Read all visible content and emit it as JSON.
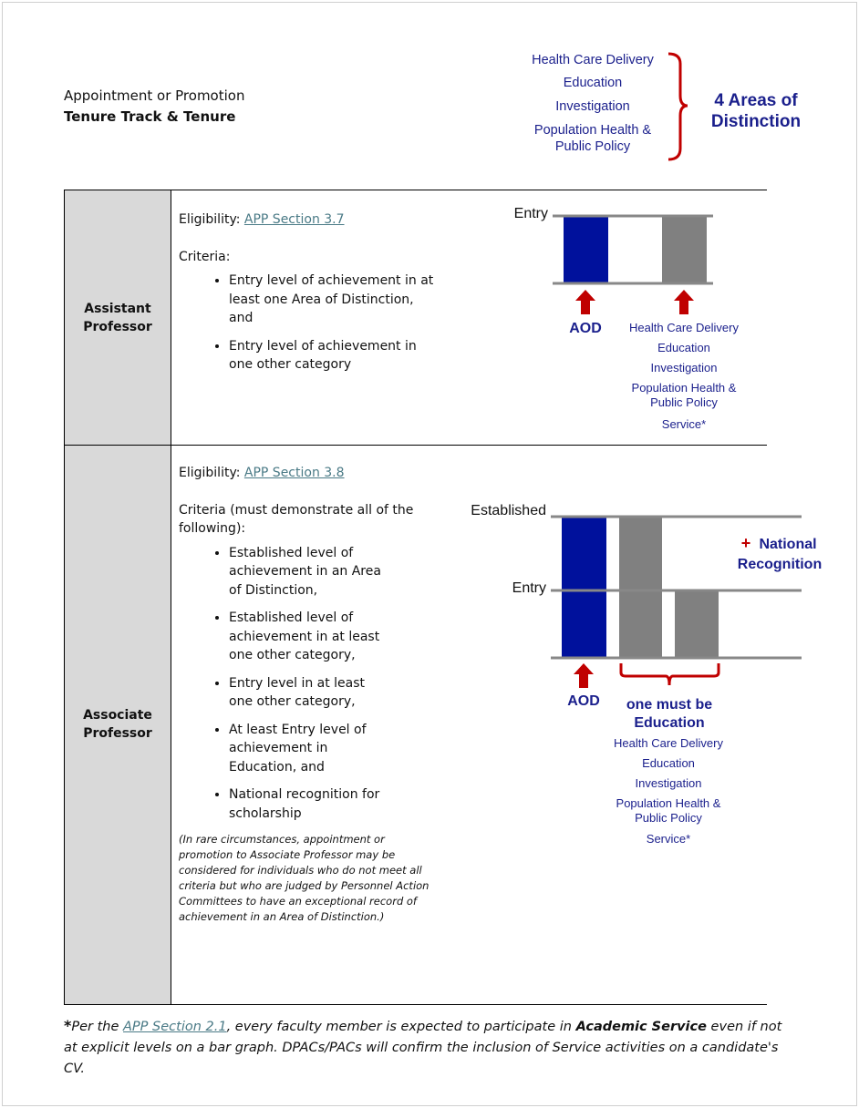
{
  "header": {
    "line1": "Appointment or Promotion",
    "line2": "Tenure Track & Tenure"
  },
  "areas": {
    "items": [
      "Health Care Delivery",
      "Education",
      "Investigation",
      "Population Health &",
      "Public Policy"
    ],
    "label_line1": "4 Areas of",
    "label_line2": "Distinction"
  },
  "colors": {
    "navy": "#1a1f8c",
    "bar_blue": "#00119c",
    "bar_gray": "#808080",
    "red": "#c00000",
    "link": "#4a7a86",
    "label_bg": "#d9d9d9"
  },
  "rows": [
    {
      "label_line1": "Assistant",
      "label_line2": "Professor",
      "eligibility_label": "Eligibility: ",
      "eligibility_link": "APP Section 3.7",
      "criteria_label": "Criteria:",
      "criteria": [
        "Entry level of achievement in at least one Area of Distinction, and",
        "Entry level of achievement in one other category"
      ],
      "diagram": {
        "levels": [
          "Entry"
        ],
        "aod": "AOD",
        "categories": [
          "Health Care Delivery",
          "Education",
          "Investigation",
          "Population Health &",
          "Public Policy",
          "Service*"
        ]
      }
    },
    {
      "label_line1": "Associate",
      "label_line2": "Professor",
      "eligibility_label": "Eligibility: ",
      "eligibility_link": "APP Section 3.8",
      "criteria_label": "Criteria (must demonstrate all of the following):",
      "criteria": [
        "Established level of achievement in an Area of Distinction,",
        "Established level of achievement in at least one other category,",
        "Entry level in at least one other category,",
        "At least Entry level of achievement in Education, and",
        "National recognition for scholarship"
      ],
      "note": "(In rare circumstances, appointment or promotion to Associate Professor may be considered for individuals who do not meet all criteria but who are judged by Personnel Action Committees to have an exceptional record of achievement in an Area of Distinction.)",
      "diagram": {
        "levels": [
          "Established",
          "Entry"
        ],
        "aod": "AOD",
        "plus": "+",
        "national_line1": "National",
        "national_line2": "Recognition",
        "must_line1": "one must be",
        "must_line2": "Education",
        "categories": [
          "Health Care Delivery",
          "Education",
          "Investigation",
          "Population Health &",
          "Public Policy",
          "Service*"
        ]
      }
    }
  ],
  "footnote": {
    "star": "*",
    "pre": "Per the ",
    "link": "APP Section 2.1",
    "mid": ", every faculty member is expected to participate in ",
    "bold": "Academic Service",
    "post": " even if not at explicit levels on a bar graph. DPACs/PACs will confirm the inclusion of Service activities on a candidate's CV."
  }
}
